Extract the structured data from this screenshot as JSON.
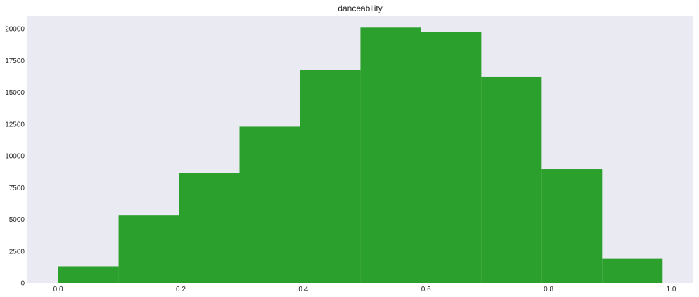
{
  "chart_data": {
    "type": "bar",
    "title": "danceability",
    "xlabel": "",
    "ylabel": "",
    "xlim": [
      -0.05,
      1.035
    ],
    "ylim": [
      0,
      21000
    ],
    "grid": false,
    "background": "#eaeaf2",
    "bar_color": "#2ca02c",
    "bins": [
      {
        "x0": 0.0,
        "x1": 0.0986,
        "value": 1300
      },
      {
        "x0": 0.0986,
        "x1": 0.1972,
        "value": 5350
      },
      {
        "x0": 0.1972,
        "x1": 0.2958,
        "value": 8650
      },
      {
        "x0": 0.2958,
        "x1": 0.3944,
        "value": 12300
      },
      {
        "x0": 0.3944,
        "x1": 0.493,
        "value": 16750
      },
      {
        "x0": 0.493,
        "x1": 0.5916,
        "value": 20100
      },
      {
        "x0": 0.5916,
        "x1": 0.6902,
        "value": 19750
      },
      {
        "x0": 0.6902,
        "x1": 0.7888,
        "value": 16250
      },
      {
        "x0": 0.7888,
        "x1": 0.8874,
        "value": 8950
      },
      {
        "x0": 0.8874,
        "x1": 0.986,
        "value": 1900
      }
    ],
    "x_ticks": [
      {
        "value": 0.0,
        "label": "0.0"
      },
      {
        "value": 0.2,
        "label": "0.2"
      },
      {
        "value": 0.4,
        "label": "0.4"
      },
      {
        "value": 0.6,
        "label": "0.6"
      },
      {
        "value": 0.8,
        "label": "0.8"
      },
      {
        "value": 1.0,
        "label": "1.0"
      }
    ],
    "y_ticks": [
      {
        "value": 0,
        "label": "0"
      },
      {
        "value": 2500,
        "label": "2500"
      },
      {
        "value": 5000,
        "label": "5000"
      },
      {
        "value": 7500,
        "label": "7500"
      },
      {
        "value": 10000,
        "label": "10000"
      },
      {
        "value": 12500,
        "label": "12500"
      },
      {
        "value": 15000,
        "label": "15000"
      },
      {
        "value": 17500,
        "label": "17500"
      },
      {
        "value": 20000,
        "label": "20000"
      }
    ]
  }
}
